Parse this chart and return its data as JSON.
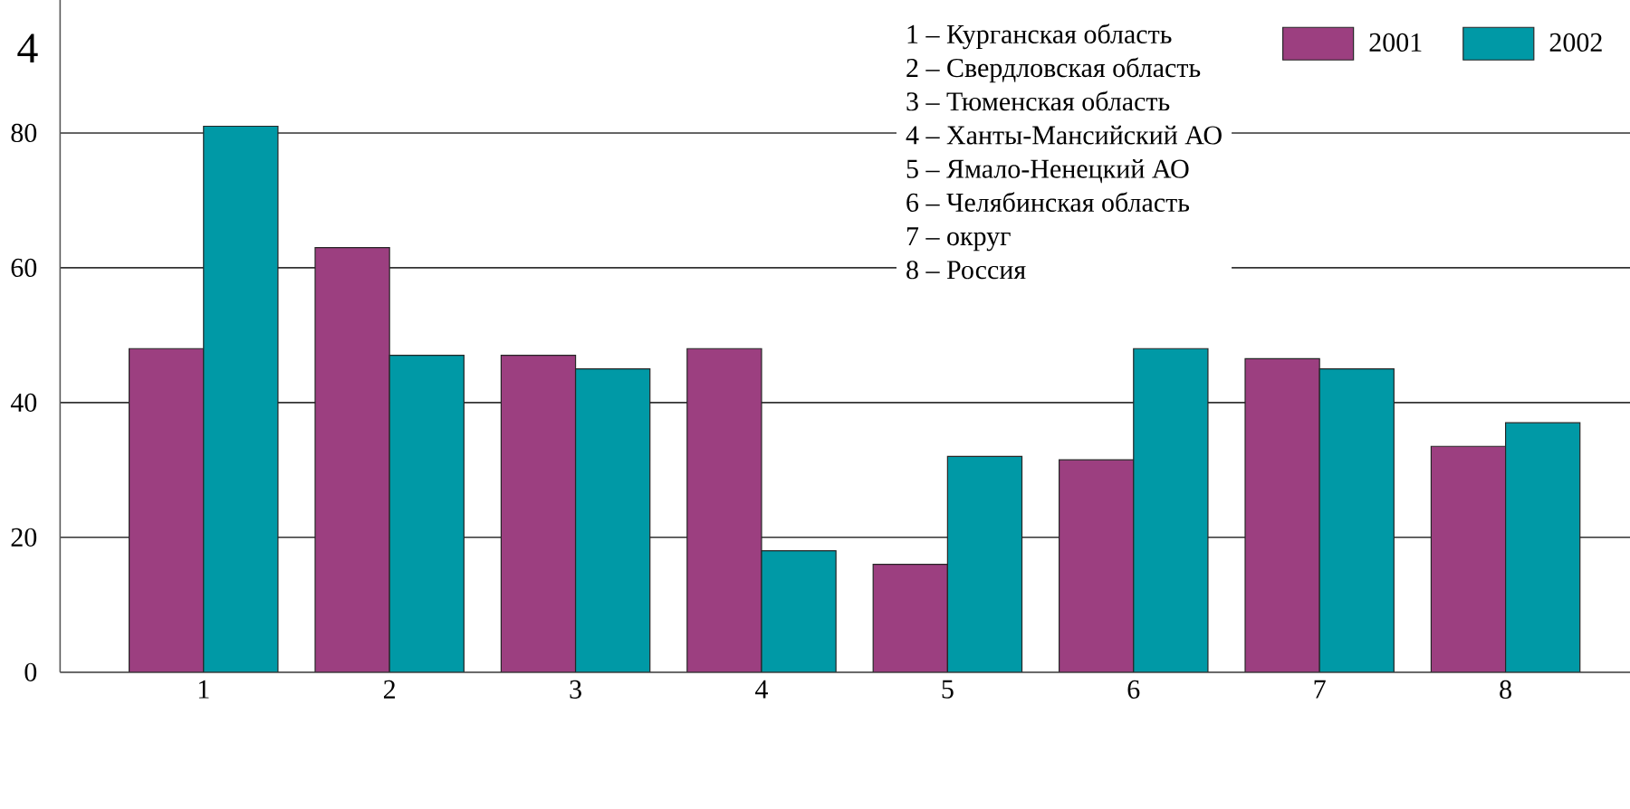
{
  "chart_data": {
    "type": "bar",
    "title": "4",
    "categories": [
      "1",
      "2",
      "3",
      "4",
      "5",
      "6",
      "7",
      "8"
    ],
    "series": [
      {
        "name": "2001",
        "color": "#9c3f80",
        "values": [
          48,
          63,
          47,
          48,
          16,
          31.5,
          46.5,
          33.5
        ]
      },
      {
        "name": "2002",
        "color": "#0099a6",
        "values": [
          81,
          47,
          45,
          18,
          32,
          48,
          45,
          37
        ]
      }
    ],
    "ylim": [
      0,
      100
    ],
    "yticks": [
      0,
      20,
      40,
      60,
      80
    ],
    "grid": "y",
    "legend": "top right",
    "annotations": [
      "1 – Курганская область",
      "2 – Свердловская область",
      "3 – Тюменская область",
      "4 – Ханты-Мансийский АО",
      "5 – Ямало-Ненецкий АО",
      "6 – Челябинская область",
      "7 – округ",
      "8 – Россия"
    ]
  }
}
